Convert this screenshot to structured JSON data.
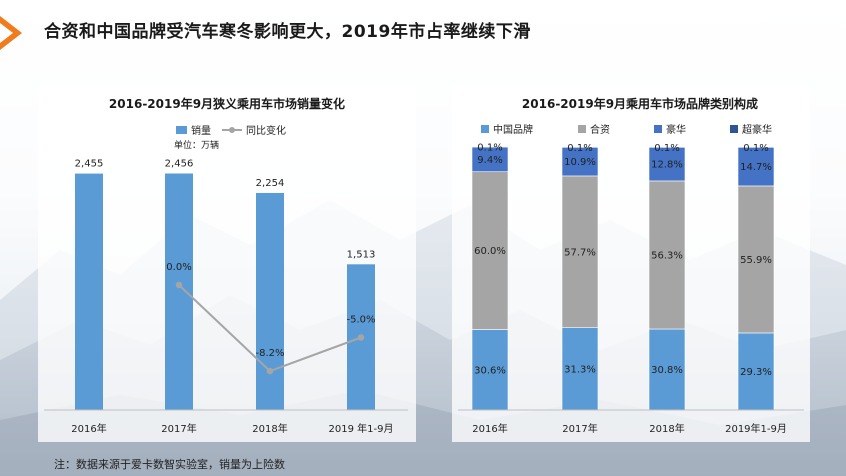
{
  "slide": {
    "title": "合资和中国品牌受汽车寒冬影响更大，2019年市占率继续下滑",
    "footnote": "注：数据来源于爱卡数智实验室，销量为上险数",
    "accent_color": "#f07c1e"
  },
  "chart_data": [
    {
      "type": "bar",
      "title": "2016-2019年9月狭义乘用车市场销量变化",
      "unit_note": "单位：万辆",
      "categories": [
        "2016年",
        "2017年",
        "2018年",
        "2019 年1-9月"
      ],
      "series": [
        {
          "name": "销量",
          "values": [
            2455,
            2456,
            2254,
            1513
          ],
          "labels": [
            "2,455",
            "2,456",
            "2,254",
            "1,513"
          ],
          "color": "#5b9bd5"
        },
        {
          "name": "同比变化",
          "type": "line",
          "values": [
            null,
            0.0,
            -8.2,
            -5.0
          ],
          "labels": [
            "",
            "0.0%",
            "-8.2%",
            "-5.0%"
          ],
          "color": "#a5a5a5"
        }
      ],
      "ylim": [
        0,
        2700
      ],
      "y2lim": [
        -10,
        10
      ],
      "grid": false,
      "legend": "top-center"
    },
    {
      "type": "bar",
      "stacked": true,
      "percent": true,
      "title": "2016-2019年9月乘用车市场品牌类别构成",
      "categories": [
        "2016年",
        "2017年",
        "2018年",
        "2019年1-9月"
      ],
      "series": [
        {
          "name": "中国品牌",
          "values": [
            30.6,
            31.3,
            30.8,
            29.3
          ],
          "labels": [
            "30.6%",
            "31.3%",
            "30.8%",
            "29.3%"
          ],
          "color": "#5b9bd5"
        },
        {
          "name": "合资",
          "values": [
            60.0,
            57.7,
            56.3,
            55.9
          ],
          "labels": [
            "60.0%",
            "57.7%",
            "56.3%",
            "55.9%"
          ],
          "color": "#a5a5a5"
        },
        {
          "name": "豪华",
          "values": [
            9.4,
            10.9,
            12.8,
            14.7
          ],
          "labels": [
            "9.4%",
            "10.9%",
            "12.8%",
            "14.7%"
          ],
          "color": "#4472c4"
        },
        {
          "name": "超豪华",
          "values": [
            0.1,
            0.1,
            0.1,
            0.1
          ],
          "labels": [
            "0.1%",
            "0.1%",
            "0.1%",
            "0.1%"
          ],
          "color": "#2f5597"
        }
      ],
      "ylim": [
        0,
        100
      ],
      "grid": false,
      "legend": "top-center"
    }
  ]
}
